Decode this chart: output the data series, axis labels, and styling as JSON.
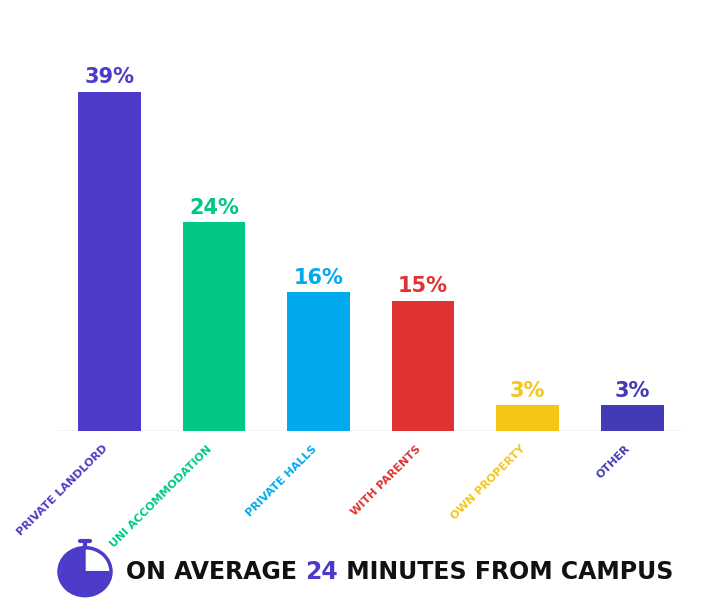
{
  "categories": [
    "PRIVATE LANDLORD",
    "UNI ACCOMMODATION",
    "PRIVATE HALLS",
    "WITH PARENTS",
    "OWN PROPERTY",
    "OTHER"
  ],
  "values": [
    39,
    24,
    16,
    15,
    3,
    3
  ],
  "bar_colors": [
    "#4B3BC8",
    "#00C882",
    "#00AAED",
    "#E03232",
    "#F5C518",
    "#433AB5"
  ],
  "label_colors": [
    "#4B3BC8",
    "#00C882",
    "#00AAED",
    "#E03232",
    "#F5C518",
    "#433AB5"
  ],
  "pct_labels": [
    "39%",
    "24%",
    "16%",
    "15%",
    "3%",
    "3%"
  ],
  "background_color": "#FFFFFF",
  "footer_text_main": "ON AVERAGE ",
  "footer_number": "24",
  "footer_text_end": " MINUTES FROM CAMPUS",
  "footer_number_color": "#4B3BC8",
  "footer_text_color": "#111111",
  "stopwatch_color": "#4B3BC8",
  "ylim": [
    0,
    46
  ],
  "bar_width": 0.6,
  "pct_fontsize": 15,
  "label_fontsize": 8,
  "footer_fontsize": 17
}
